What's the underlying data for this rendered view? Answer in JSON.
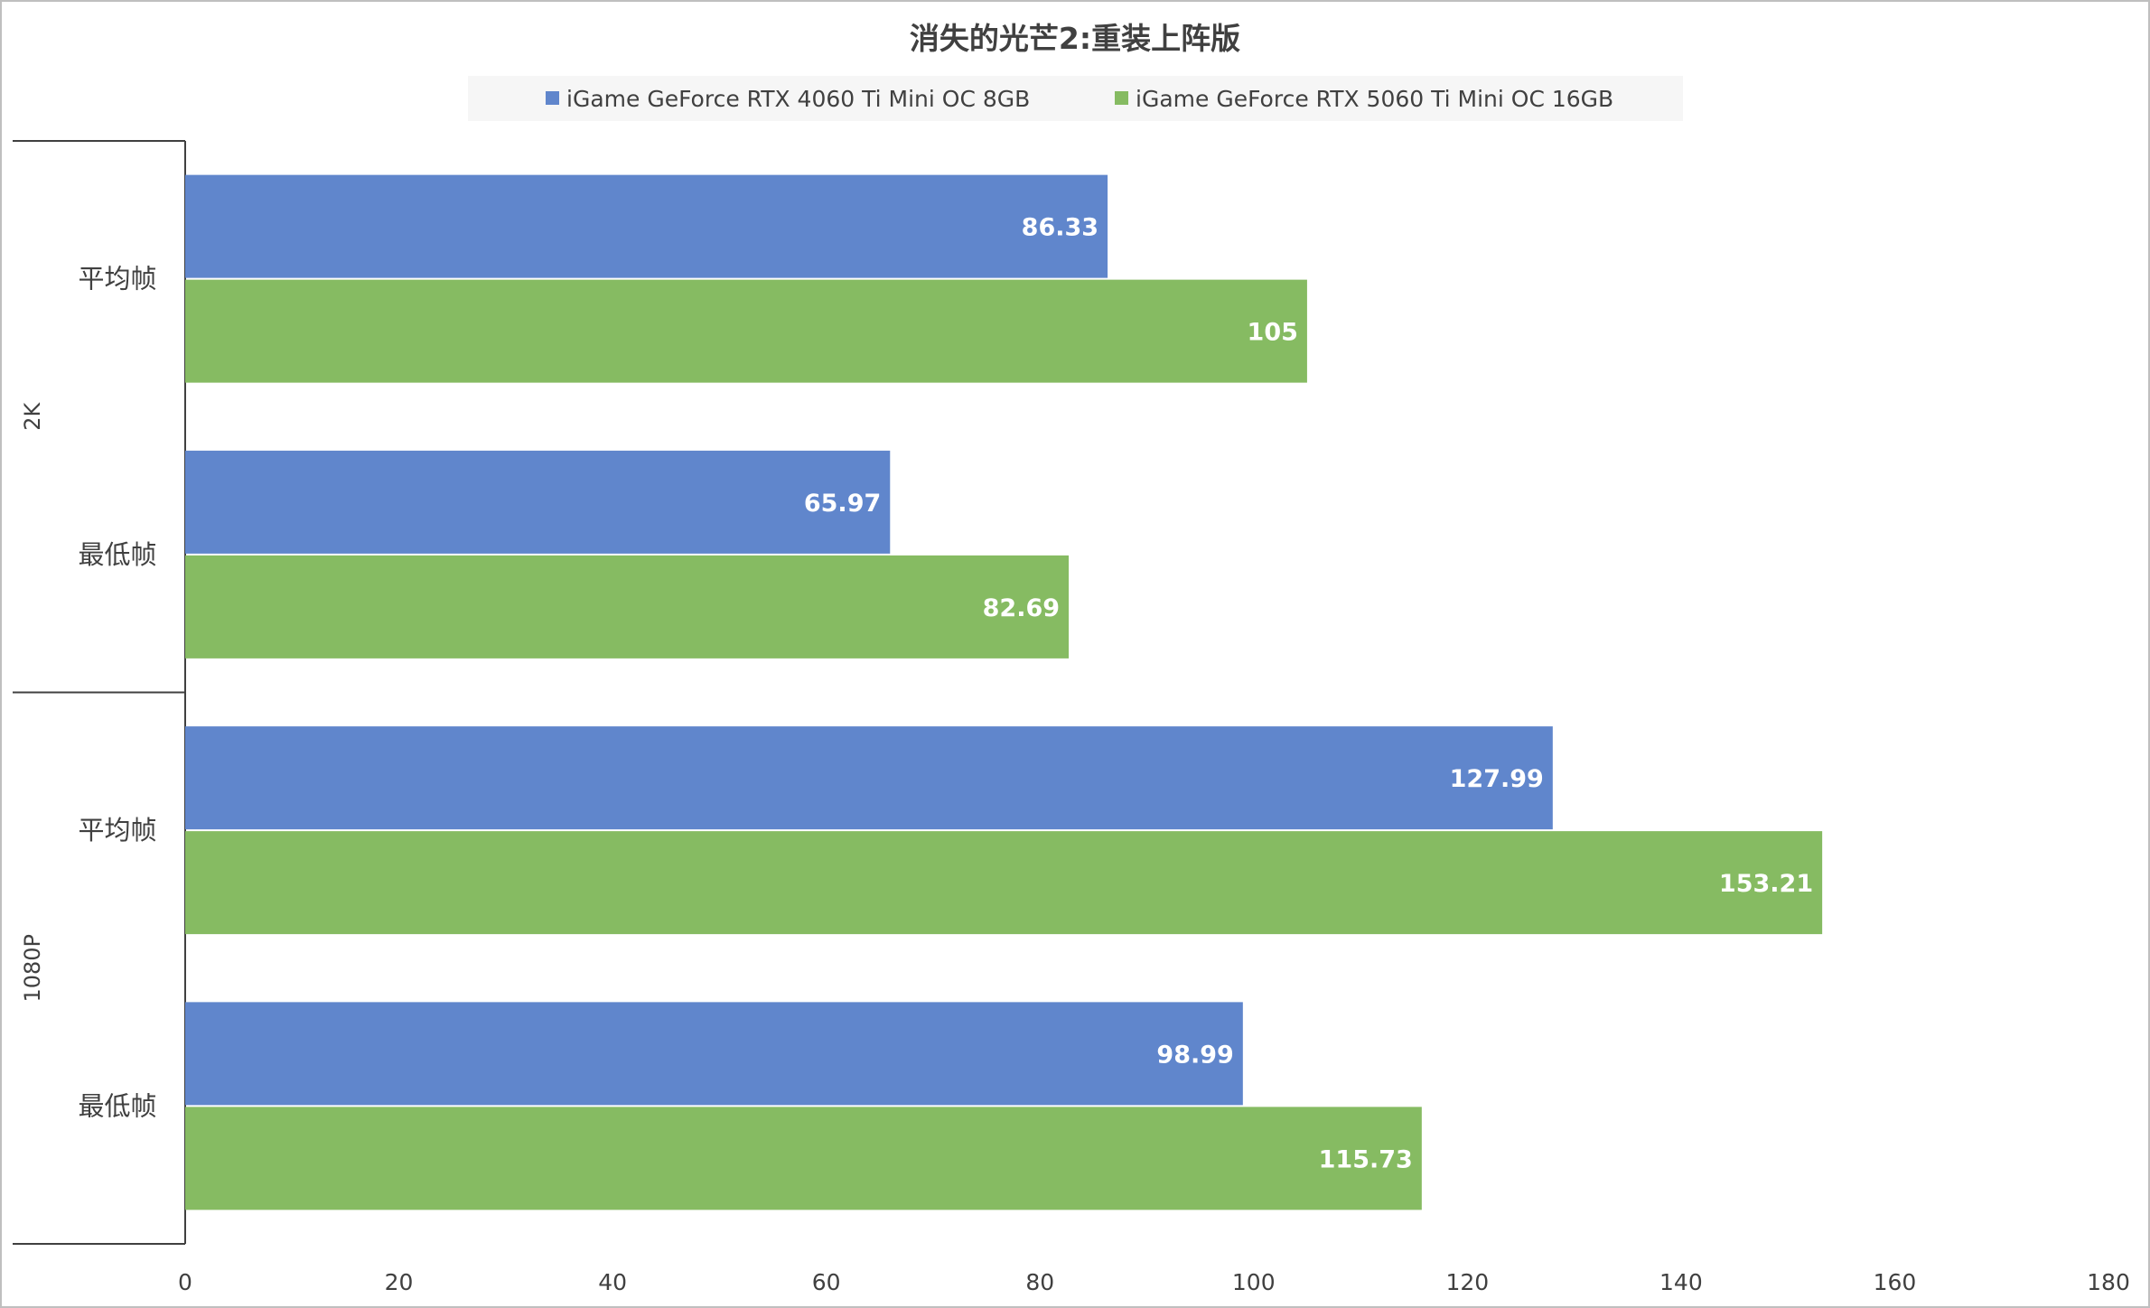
{
  "chart_data": {
    "type": "bar",
    "orientation": "horizontal",
    "title": "消失的光芒2:重装上阵版",
    "legend_position": "top",
    "xlim": [
      0,
      180
    ],
    "x_ticks": [
      0,
      20,
      40,
      60,
      80,
      100,
      120,
      140,
      160,
      180
    ],
    "grid": false,
    "groups": [
      {
        "label": "2K",
        "categories": [
          "平均帧",
          "最低帧"
        ]
      },
      {
        "label": "1080P",
        "categories": [
          "平均帧",
          "最低帧"
        ]
      }
    ],
    "series": [
      {
        "name": "iGame GeForce RTX 4060 Ti Mini OC 8GB",
        "color": "#6086cc",
        "values": [
          86.33,
          65.97,
          127.99,
          98.99
        ],
        "labels": [
          "86.33",
          "65.97",
          "127.99",
          "98.99"
        ]
      },
      {
        "name": "iGame GeForce RTX 5060 Ti Mini OC 16GB",
        "color": "#86bb62",
        "values": [
          105,
          82.69,
          153.21,
          115.73
        ],
        "labels": [
          "105",
          "82.69",
          "153.21",
          "115.73"
        ]
      }
    ]
  }
}
